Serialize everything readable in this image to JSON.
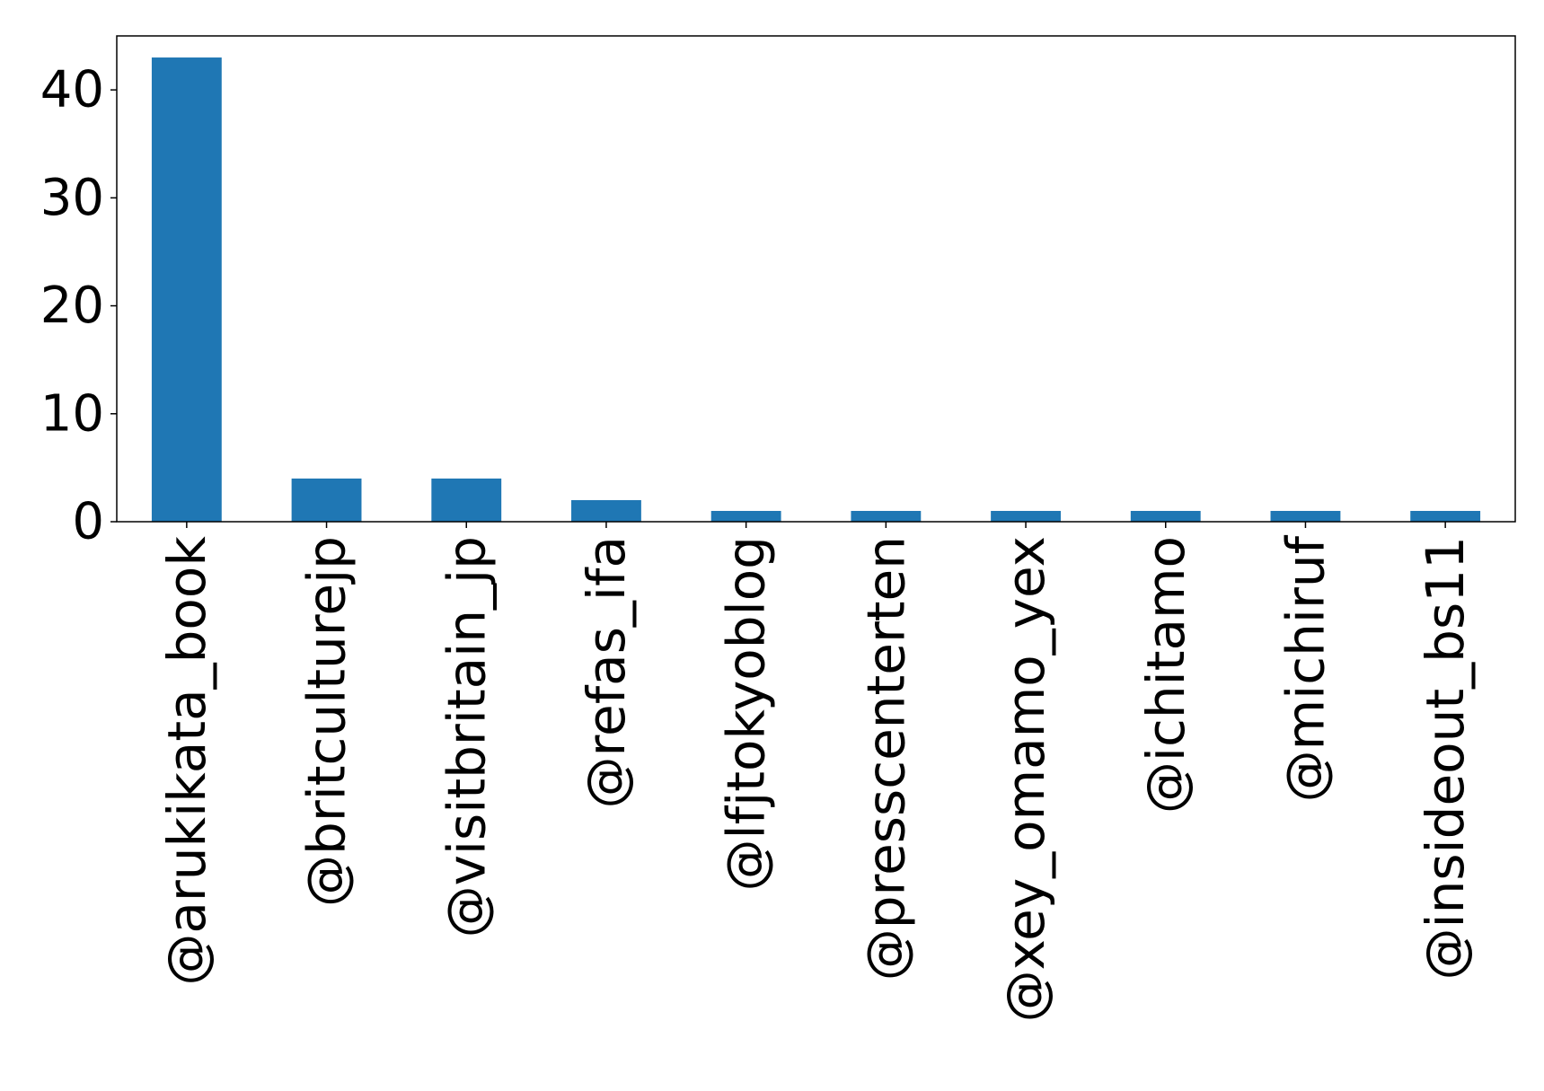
{
  "chart_data": {
    "type": "bar",
    "title": "",
    "xlabel": "",
    "ylabel": "",
    "categories": [
      "@arukikata_book",
      "@britculturejp",
      "@visitbritain_jp",
      "@refas_ifa",
      "@lfjtokyoblog",
      "@presscenterten",
      "@xey_omamo_yex",
      "@ichitamo",
      "@michiruf",
      "@insideout_bs11"
    ],
    "values": [
      43,
      4,
      4,
      2,
      1,
      1,
      1,
      1,
      1,
      1
    ],
    "ylim": [
      0,
      45
    ],
    "yticks": [
      0,
      10,
      20,
      30,
      40
    ],
    "bar_color": "#1f77b4",
    "grid": false,
    "legend": "none"
  }
}
